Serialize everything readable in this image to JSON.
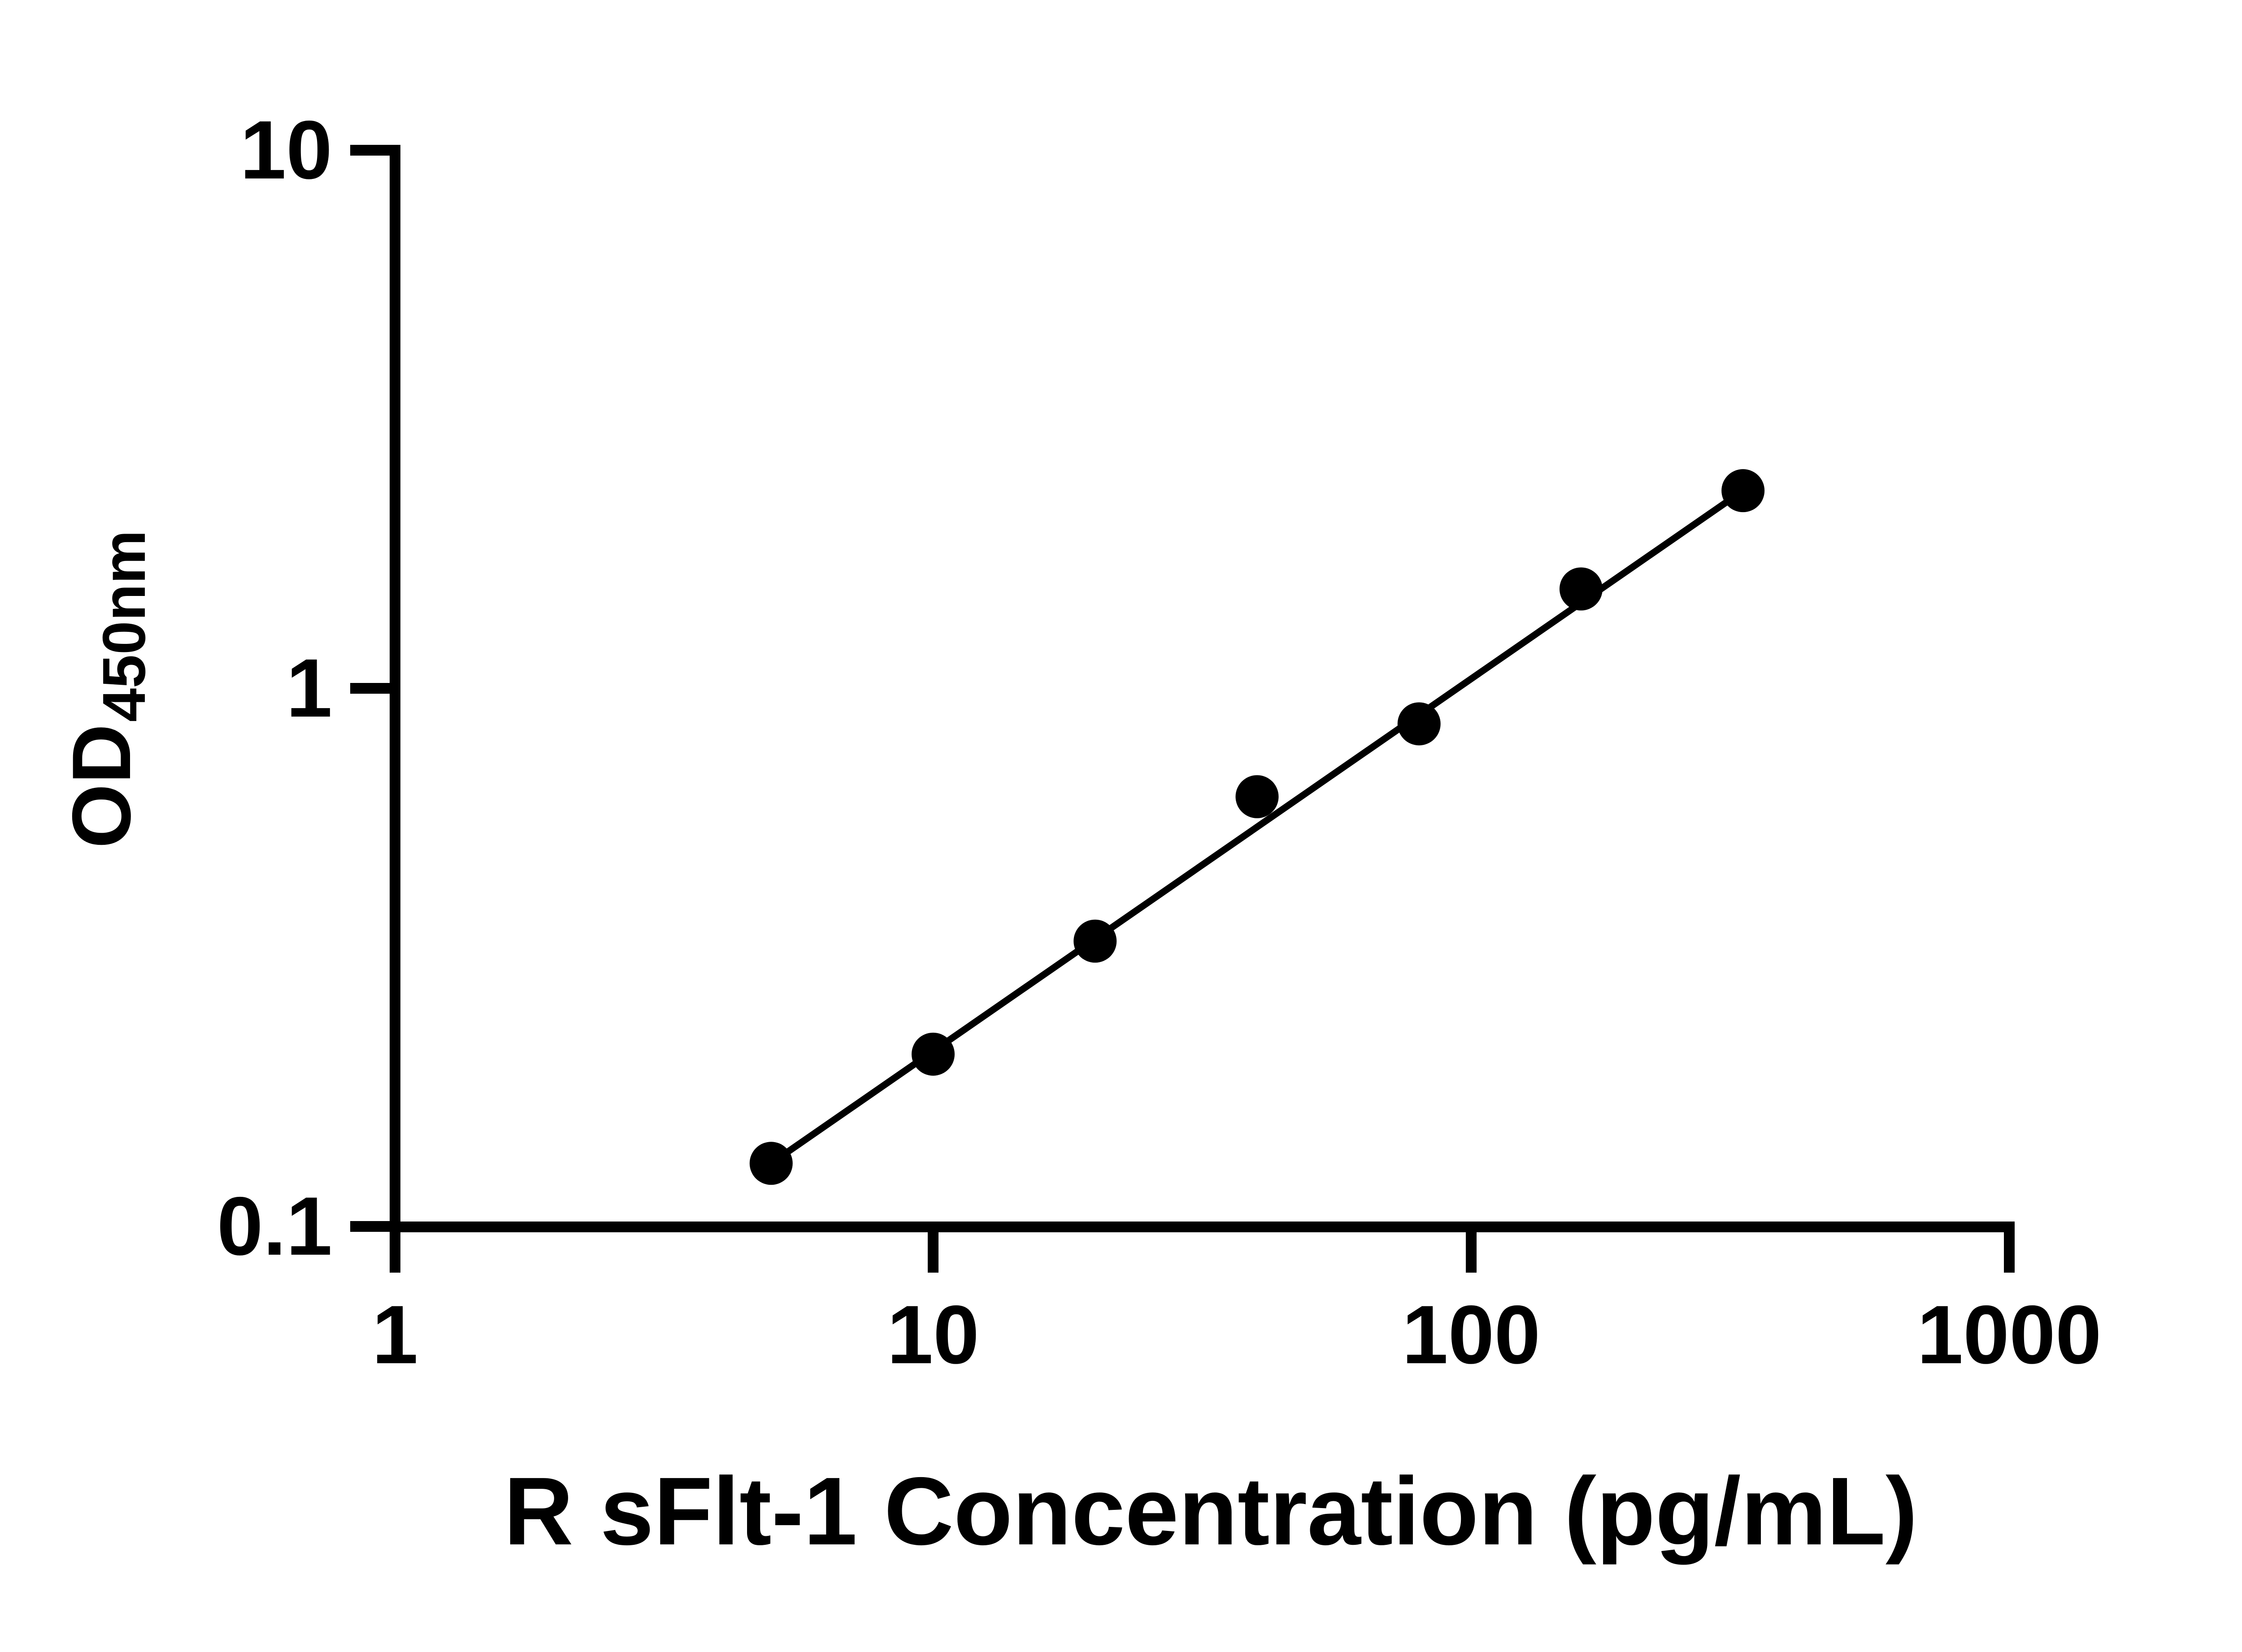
{
  "figure": {
    "background_color": "#ffffff",
    "ink_color": "#000000"
  },
  "chart_data": {
    "type": "scatter",
    "title": "",
    "xlabel": "R sFlt-1 Concentration (pg/mL)",
    "ylabel": {
      "main": "OD",
      "subscript": "450nm"
    },
    "x_scale": "log",
    "y_scale": "log",
    "xlim": [
      1,
      1000
    ],
    "ylim": [
      0.1,
      10
    ],
    "grid": false,
    "legend_position": "none",
    "x_ticks": [
      {
        "value": 1,
        "label": "1"
      },
      {
        "value": 10,
        "label": "10"
      },
      {
        "value": 100,
        "label": "100"
      },
      {
        "value": 1000,
        "label": "1000"
      }
    ],
    "y_ticks": [
      {
        "value": 0.1,
        "label": "0.1"
      },
      {
        "value": 1,
        "label": "1"
      },
      {
        "value": 10,
        "label": "10"
      }
    ],
    "series": [
      {
        "name": "standard-curve-points",
        "marker": "circle",
        "color": "#000000",
        "points": [
          {
            "x": 5,
            "y": 0.131
          },
          {
            "x": 10,
            "y": 0.209
          },
          {
            "x": 20,
            "y": 0.339
          },
          {
            "x": 40,
            "y": 0.629
          },
          {
            "x": 80,
            "y": 0.859
          },
          {
            "x": 160,
            "y": 1.53
          },
          {
            "x": 320,
            "y": 2.33
          }
        ]
      }
    ],
    "fit_line": {
      "from": {
        "x": 5,
        "y": 0.131
      },
      "to": {
        "x": 320,
        "y": 2.33
      }
    }
  }
}
